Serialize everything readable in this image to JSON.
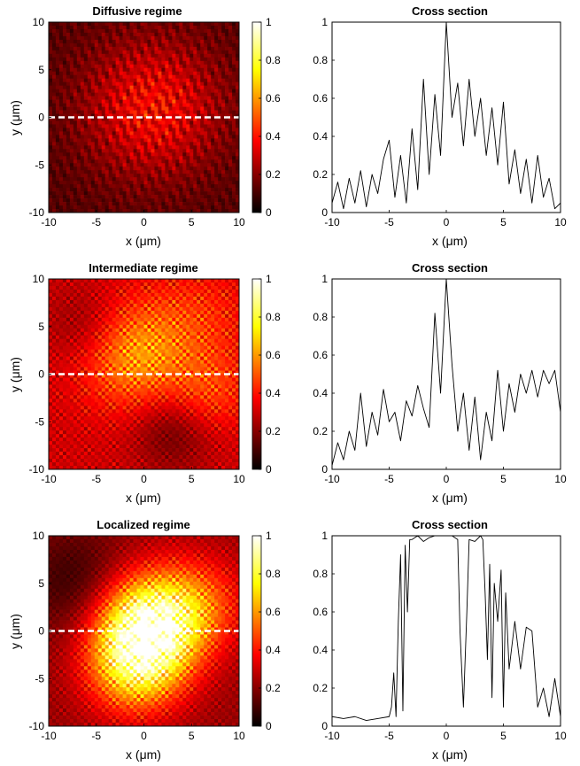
{
  "chart_data": [
    {
      "type": "heatmap",
      "title": "Diffusive regime",
      "xlabel": "x (μm)",
      "ylabel": "y (μm)",
      "xlim": [
        -10,
        10
      ],
      "ylim": [
        -10,
        10
      ],
      "x_ticks": [
        "-10",
        "-5",
        "0",
        "5",
        "10"
      ],
      "y_ticks": [
        "-10",
        "-5",
        "0",
        "5",
        "10"
      ],
      "colorbar": {
        "range": [
          0,
          1
        ],
        "ticks": [
          "0",
          "0.2",
          "0.4",
          "0.6",
          "0.8",
          "1"
        ],
        "colormap": "hot"
      },
      "cut_line_y": 0,
      "intensity_profile": {
        "background": 0.12,
        "blobs": [
          {
            "x": 1,
            "y": 1,
            "r": 5,
            "v": 0.25
          }
        ],
        "speckle_scale": 0.35,
        "speckle_amplitude": 0.5
      }
    },
    {
      "type": "line",
      "title": "Cross section",
      "xlabel": "x (μm)",
      "ylabel": "",
      "xlim": [
        -10,
        10
      ],
      "ylim": [
        0,
        1
      ],
      "x_ticks": [
        "-10",
        "-5",
        "0",
        "5",
        "10"
      ],
      "y_ticks": [
        "0",
        "0.2",
        "0.4",
        "0.6",
        "0.8",
        "1"
      ],
      "series": [
        {
          "x": [
            -10,
            -9.5,
            -9,
            -8.5,
            -8,
            -7.5,
            -7,
            -6.5,
            -6,
            -5.5,
            -5,
            -4.5,
            -4,
            -3.5,
            -3,
            -2.5,
            -2,
            -1.5,
            -1,
            -0.5,
            0,
            0.5,
            1,
            1.5,
            2,
            2.5,
            3,
            3.5,
            4,
            4.5,
            5,
            5.5,
            6,
            6.5,
            7,
            7.5,
            8,
            8.5,
            9,
            9.5,
            10
          ],
          "y": [
            0.05,
            0.16,
            0.02,
            0.18,
            0.05,
            0.22,
            0.03,
            0.2,
            0.1,
            0.28,
            0.38,
            0.08,
            0.3,
            0.05,
            0.44,
            0.12,
            0.7,
            0.2,
            0.62,
            0.3,
            1.0,
            0.5,
            0.68,
            0.35,
            0.7,
            0.4,
            0.6,
            0.3,
            0.55,
            0.25,
            0.58,
            0.15,
            0.33,
            0.1,
            0.28,
            0.05,
            0.3,
            0.08,
            0.18,
            0.02,
            0.05
          ]
        }
      ]
    },
    {
      "type": "heatmap",
      "title": "Intermediate regime",
      "xlabel": "x (μm)",
      "ylabel": "y (μm)",
      "xlim": [
        -10,
        10
      ],
      "ylim": [
        -10,
        10
      ],
      "x_ticks": [
        "-10",
        "-5",
        "0",
        "5",
        "10"
      ],
      "y_ticks": [
        "-10",
        "-5",
        "0",
        "5",
        "10"
      ],
      "colorbar": {
        "range": [
          0,
          1
        ],
        "ticks": [
          "0",
          "0.2",
          "0.4",
          "0.6",
          "0.8",
          "1"
        ],
        "colormap": "hot"
      },
      "cut_line_y": 0,
      "intensity_profile": {
        "background": 0.3,
        "blobs": [
          {
            "x": -1,
            "y": 2,
            "r": 4,
            "v": 0.3
          },
          {
            "x": 6,
            "y": 6,
            "r": 4,
            "v": 0.12
          },
          {
            "x": 7,
            "y": -2,
            "r": 3,
            "v": 0.15
          },
          {
            "x": -6,
            "y": 5,
            "r": 3,
            "v": -0.12
          },
          {
            "x": 3,
            "y": -6,
            "r": 3,
            "v": -0.15
          }
        ],
        "speckle_scale": 0.8,
        "speckle_amplitude": 0.35
      }
    },
    {
      "type": "line",
      "title": "Cross section",
      "xlabel": "x (μm)",
      "ylabel": "",
      "xlim": [
        -10,
        10
      ],
      "ylim": [
        0,
        1
      ],
      "x_ticks": [
        "-10",
        "-5",
        "0",
        "5",
        "10"
      ],
      "y_ticks": [
        "0",
        "0.2",
        "0.4",
        "0.6",
        "0.8",
        "1"
      ],
      "series": [
        {
          "x": [
            -10,
            -9.5,
            -9,
            -8.5,
            -8,
            -7.5,
            -7,
            -6.5,
            -6,
            -5.5,
            -5,
            -4.5,
            -4,
            -3.5,
            -3,
            -2.5,
            -2,
            -1.5,
            -1,
            -0.5,
            0,
            0.5,
            1,
            1.5,
            2,
            2.5,
            3,
            3.5,
            4,
            4.5,
            5,
            5.5,
            6,
            6.5,
            7,
            7.5,
            8,
            8.5,
            9,
            9.5,
            10
          ],
          "y": [
            0.02,
            0.14,
            0.05,
            0.2,
            0.1,
            0.4,
            0.12,
            0.3,
            0.18,
            0.42,
            0.25,
            0.3,
            0.15,
            0.36,
            0.28,
            0.44,
            0.32,
            0.22,
            0.82,
            0.4,
            1.0,
            0.55,
            0.2,
            0.4,
            0.1,
            0.38,
            0.05,
            0.3,
            0.15,
            0.52,
            0.2,
            0.45,
            0.3,
            0.5,
            0.4,
            0.52,
            0.38,
            0.52,
            0.45,
            0.52,
            0.3
          ]
        }
      ]
    },
    {
      "type": "heatmap",
      "title": "Localized regime",
      "xlabel": "x (μm)",
      "ylabel": "y (μm)",
      "xlim": [
        -10,
        10
      ],
      "ylim": [
        -10,
        10
      ],
      "x_ticks": [
        "-10",
        "-5",
        "0",
        "5",
        "10"
      ],
      "y_ticks": [
        "-10",
        "-5",
        "0",
        "5",
        "10"
      ],
      "colorbar": {
        "range": [
          0,
          1
        ],
        "ticks": [
          "0",
          "0.2",
          "0.4",
          "0.6",
          "0.8",
          "1"
        ],
        "colormap": "hot"
      },
      "cut_line_y": 0,
      "intensity_profile": {
        "background": 0.22,
        "blobs": [
          {
            "x": 0.5,
            "y": 0.5,
            "r": 3.8,
            "v": 0.75
          },
          {
            "x": -1,
            "y": -4,
            "r": 3.5,
            "v": 0.4
          },
          {
            "x": 6,
            "y": 3,
            "r": 3.5,
            "v": 0.22
          },
          {
            "x": -7,
            "y": 5,
            "r": 4,
            "v": -0.15
          }
        ],
        "speckle_scale": 0.8,
        "speckle_amplitude": 0.3
      }
    },
    {
      "type": "line",
      "title": "Cross section",
      "xlabel": "x (μm)",
      "ylabel": "",
      "xlim": [
        -10,
        10
      ],
      "ylim": [
        0,
        1
      ],
      "x_ticks": [
        "-10",
        "-5",
        "0",
        "5",
        "10"
      ],
      "y_ticks": [
        "0",
        "0.2",
        "0.4",
        "0.6",
        "0.8",
        "1"
      ],
      "series": [
        {
          "x": [
            -10,
            -9,
            -8,
            -7,
            -6,
            -5,
            -4.8,
            -4.6,
            -4.4,
            -4.2,
            -4,
            -3.8,
            -3.6,
            -3.4,
            -3.2,
            -3,
            -2.5,
            -2,
            -1.5,
            -1,
            -0.5,
            0,
            0.5,
            1,
            1.2,
            1.5,
            1.8,
            2,
            2.5,
            3,
            3.2,
            3.4,
            3.6,
            3.8,
            4,
            4.2,
            4.5,
            4.8,
            5,
            5.2,
            5.5,
            6,
            6.5,
            7,
            7.5,
            8,
            8.5,
            9,
            9.5,
            10
          ],
          "y": [
            0.05,
            0.04,
            0.05,
            0.03,
            0.04,
            0.05,
            0.1,
            0.28,
            0.05,
            0.55,
            0.9,
            0.08,
            0.95,
            0.6,
            0.98,
            0.98,
            1.0,
            0.97,
            0.99,
            1.0,
            1.0,
            1.0,
            1.0,
            0.98,
            0.5,
            0.1,
            0.6,
            0.98,
            0.97,
            1.0,
            0.98,
            0.7,
            0.35,
            0.85,
            0.15,
            0.75,
            0.55,
            0.82,
            0.1,
            0.7,
            0.3,
            0.55,
            0.3,
            0.52,
            0.5,
            0.1,
            0.2,
            0.05,
            0.25,
            0.05
          ]
        }
      ]
    }
  ]
}
